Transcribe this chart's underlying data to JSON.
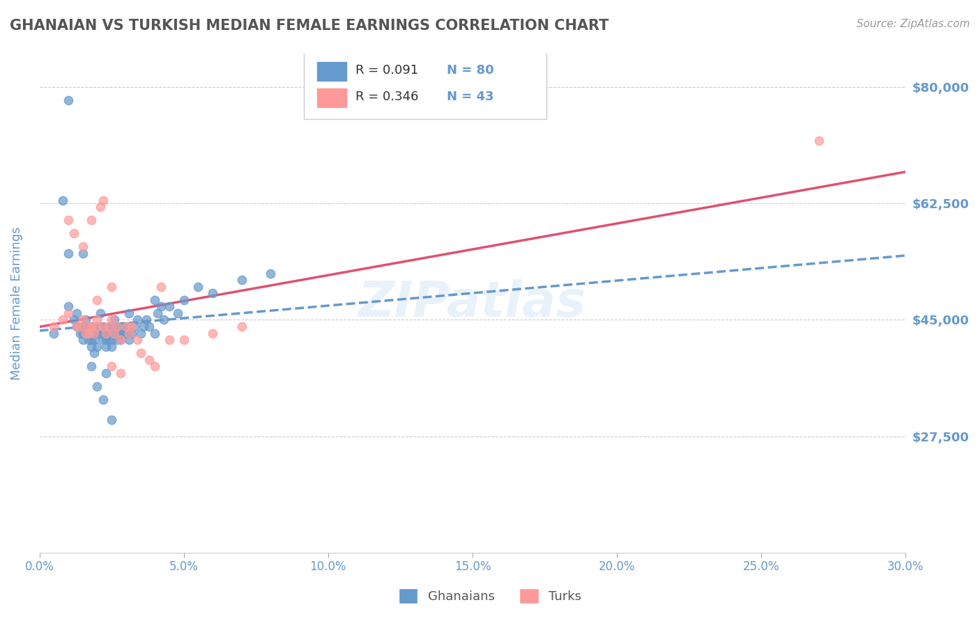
{
  "title": "GHANAIAN VS TURKISH MEDIAN FEMALE EARNINGS CORRELATION CHART",
  "source": "Source: ZipAtlas.com",
  "xlabel": "",
  "ylabel": "Median Female Earnings",
  "xlim": [
    0.0,
    0.3
  ],
  "ylim": [
    10000,
    85000
  ],
  "yticks": [
    27500,
    45000,
    62500,
    80000
  ],
  "xticks": [
    0.0,
    0.05,
    0.1,
    0.15,
    0.2,
    0.25,
    0.3
  ],
  "xtick_labels": [
    "0.0%",
    "5.0%",
    "10.0%",
    "15.0%",
    "20.0%",
    "25.0%",
    "30.0%"
  ],
  "ytick_labels": [
    "$27,500",
    "$45,000",
    "$62,500",
    "$80,000"
  ],
  "ghanaian_color": "#6699CC",
  "turkish_color": "#FF9999",
  "ghanaian_R": 0.091,
  "ghanaian_N": 80,
  "turkish_R": 0.346,
  "turkish_N": 43,
  "background_color": "#FFFFFF",
  "grid_color": "#CCCCCC",
  "watermark": "ZIPatlas",
  "title_color": "#555555",
  "axis_label_color": "#6699CC",
  "tick_label_color": "#6699CC",
  "legend_R_color": "#333333",
  "legend_N_color": "#6699CC",
  "ghanaian_scatter_x": [
    0.005,
    0.008,
    0.01,
    0.01,
    0.012,
    0.013,
    0.013,
    0.014,
    0.015,
    0.015,
    0.015,
    0.016,
    0.016,
    0.017,
    0.017,
    0.018,
    0.018,
    0.018,
    0.018,
    0.019,
    0.019,
    0.02,
    0.02,
    0.02,
    0.021,
    0.021,
    0.021,
    0.022,
    0.022,
    0.022,
    0.023,
    0.023,
    0.023,
    0.024,
    0.024,
    0.024,
    0.025,
    0.025,
    0.025,
    0.026,
    0.026,
    0.026,
    0.027,
    0.027,
    0.028,
    0.028,
    0.028,
    0.029,
    0.029,
    0.03,
    0.03,
    0.031,
    0.031,
    0.031,
    0.032,
    0.033,
    0.034,
    0.035,
    0.036,
    0.037,
    0.038,
    0.04,
    0.04,
    0.041,
    0.042,
    0.043,
    0.045,
    0.048,
    0.05,
    0.055,
    0.06,
    0.07,
    0.08,
    0.02,
    0.022,
    0.025,
    0.01,
    0.015,
    0.018,
    0.023
  ],
  "ghanaian_scatter_y": [
    43000,
    63000,
    55000,
    47000,
    45000,
    44000,
    46000,
    43000,
    44000,
    42000,
    43000,
    44000,
    45000,
    42000,
    43000,
    41000,
    42000,
    43000,
    44000,
    40000,
    42000,
    44000,
    43000,
    41000,
    43000,
    44000,
    46000,
    42000,
    43000,
    44000,
    41000,
    42000,
    43000,
    44000,
    42000,
    43000,
    41000,
    42000,
    44000,
    43000,
    44000,
    45000,
    42000,
    43000,
    44000,
    43000,
    42000,
    43000,
    44000,
    43000,
    44000,
    42000,
    43000,
    46000,
    43000,
    44000,
    45000,
    43000,
    44000,
    45000,
    44000,
    43000,
    48000,
    46000,
    47000,
    45000,
    47000,
    46000,
    48000,
    50000,
    49000,
    51000,
    52000,
    35000,
    33000,
    30000,
    78000,
    55000,
    38000,
    37000
  ],
  "turkish_scatter_x": [
    0.005,
    0.008,
    0.01,
    0.01,
    0.012,
    0.013,
    0.014,
    0.015,
    0.016,
    0.017,
    0.017,
    0.018,
    0.018,
    0.019,
    0.02,
    0.02,
    0.021,
    0.022,
    0.022,
    0.023,
    0.024,
    0.025,
    0.025,
    0.026,
    0.027,
    0.028,
    0.03,
    0.031,
    0.032,
    0.034,
    0.035,
    0.038,
    0.04,
    0.042,
    0.045,
    0.05,
    0.06,
    0.07,
    0.015,
    0.02,
    0.025,
    0.028,
    0.27
  ],
  "turkish_scatter_y": [
    44000,
    45000,
    60000,
    46000,
    58000,
    44000,
    44000,
    45000,
    43000,
    44000,
    43000,
    44000,
    60000,
    43000,
    44000,
    45000,
    62000,
    63000,
    44000,
    43000,
    44000,
    45000,
    50000,
    43000,
    44000,
    42000,
    44000,
    43000,
    44000,
    42000,
    40000,
    39000,
    38000,
    50000,
    42000,
    42000,
    43000,
    44000,
    56000,
    48000,
    38000,
    37000,
    72000
  ]
}
